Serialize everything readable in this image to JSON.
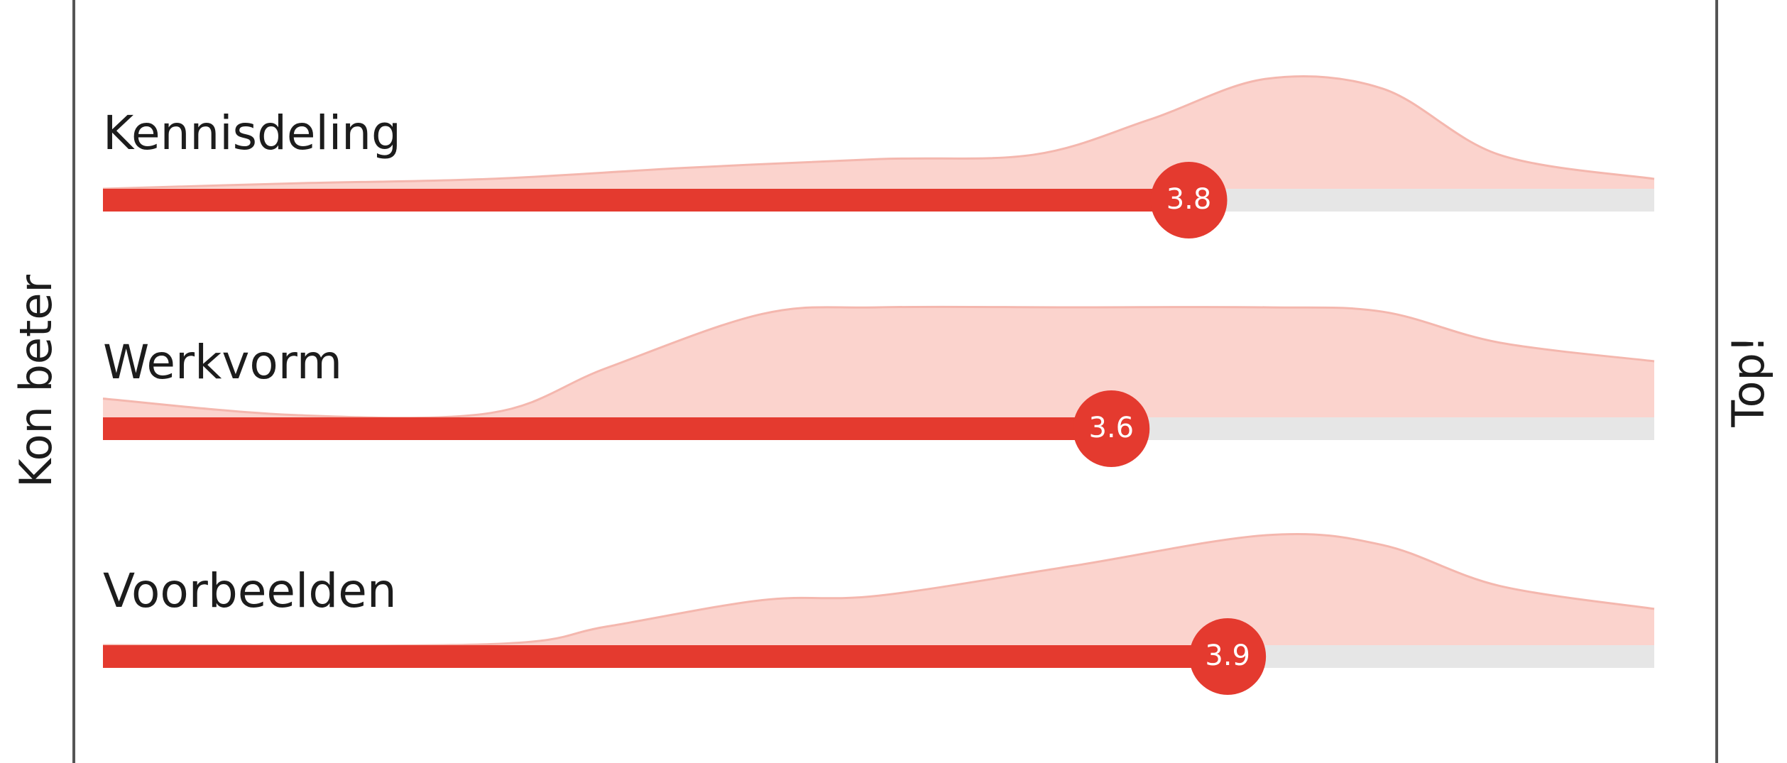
{
  "chart_data": {
    "type": "bar",
    "orientation": "horizontal",
    "left_label": "Kon beter",
    "right_label": "Top!",
    "xlim": [
      1,
      5
    ],
    "colors": {
      "bar": "#e43a2f",
      "track": "#e6e6e6",
      "distribution_fill": "#fbd3cd",
      "distribution_stroke": "#f4b7ae",
      "axis_line": "#555555"
    },
    "series": [
      {
        "name": "Kennisdeling",
        "value": 3.8,
        "value_label": "3.8",
        "distribution": {
          "x": [
            1.0,
            1.5,
            2.0,
            2.5,
            3.0,
            3.4,
            3.7,
            4.0,
            4.3,
            4.6,
            5.0
          ],
          "density": [
            0.0,
            0.05,
            0.09,
            0.19,
            0.27,
            0.31,
            0.63,
            1.0,
            0.91,
            0.31,
            0.09
          ]
        }
      },
      {
        "name": "Werkvorm",
        "value": 3.6,
        "value_label": "3.6",
        "distribution": {
          "x": [
            1.0,
            1.5,
            2.0,
            2.3,
            2.7,
            3.0,
            3.5,
            4.0,
            4.3,
            4.6,
            5.0
          ],
          "density": [
            0.17,
            0.02,
            0.04,
            0.45,
            0.94,
            1.0,
            1.0,
            1.0,
            0.96,
            0.68,
            0.51
          ]
        }
      },
      {
        "name": "Voorbeelden",
        "value": 3.9,
        "value_label": "3.9",
        "distribution": {
          "x": [
            1.0,
            2.0,
            2.3,
            2.7,
            3.0,
            3.5,
            4.0,
            4.3,
            4.6,
            5.0
          ],
          "density": [
            0.0,
            0.01,
            0.17,
            0.41,
            0.45,
            0.72,
            1.0,
            0.91,
            0.54,
            0.33
          ]
        }
      }
    ]
  }
}
